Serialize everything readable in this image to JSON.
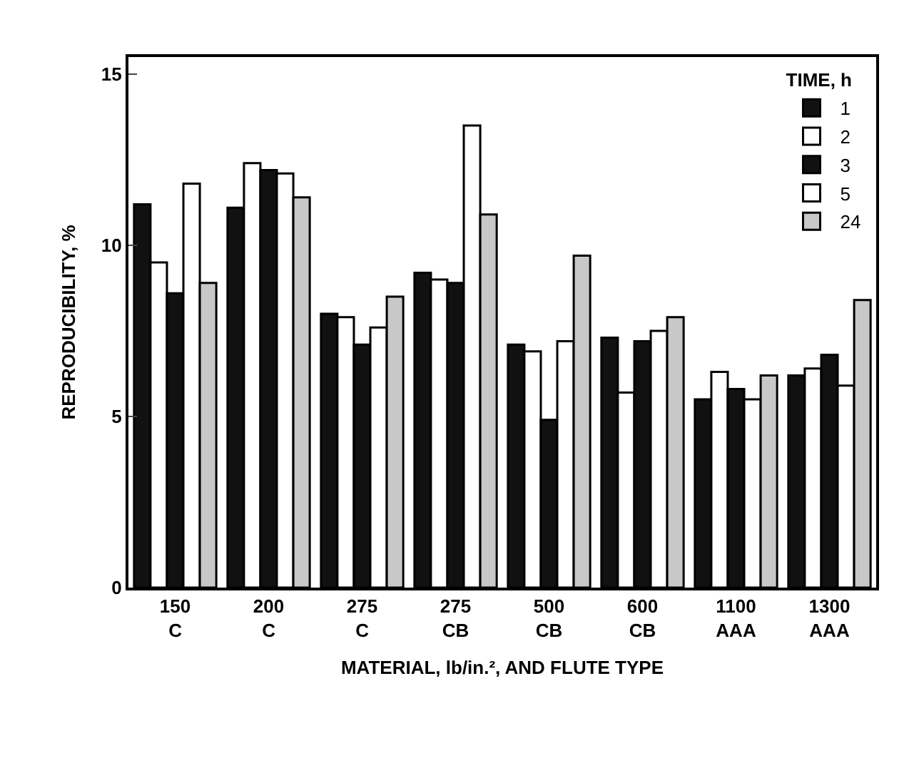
{
  "chart_data": {
    "type": "bar",
    "xlabel": "MATERIAL, lb/in.², AND FLUTE TYPE",
    "ylabel": "REPRODUCIBILITY, %",
    "legend_title": "TIME, h",
    "categories": [
      "150\nC",
      "200\nC",
      "275\nC",
      "275\nCB",
      "500\nCB",
      "600\nCB",
      "1100\nAAA",
      "1300\nAAA"
    ],
    "series": [
      {
        "name": "1",
        "color": "#111111",
        "values": [
          11.2,
          11.1,
          8.0,
          9.2,
          7.1,
          7.3,
          5.5,
          6.2
        ]
      },
      {
        "name": "2",
        "color": "#ffffff",
        "values": [
          9.5,
          12.4,
          7.9,
          9.0,
          6.9,
          5.7,
          6.3,
          6.4
        ]
      },
      {
        "name": "3",
        "color": "#111111",
        "values": [
          8.6,
          12.2,
          7.1,
          8.9,
          4.9,
          7.2,
          5.8,
          6.8
        ]
      },
      {
        "name": "5",
        "color": "#ffffff",
        "values": [
          11.8,
          12.1,
          7.6,
          13.5,
          7.2,
          7.5,
          5.5,
          5.9
        ]
      },
      {
        "name": "24",
        "color": "#c8c8c8",
        "values": [
          8.9,
          11.4,
          8.5,
          10.9,
          9.7,
          7.9,
          6.2,
          8.4
        ]
      }
    ],
    "ylim": [
      0,
      15.5
    ],
    "yticks": [
      0,
      5,
      10,
      15
    ],
    "legend": "top right"
  }
}
